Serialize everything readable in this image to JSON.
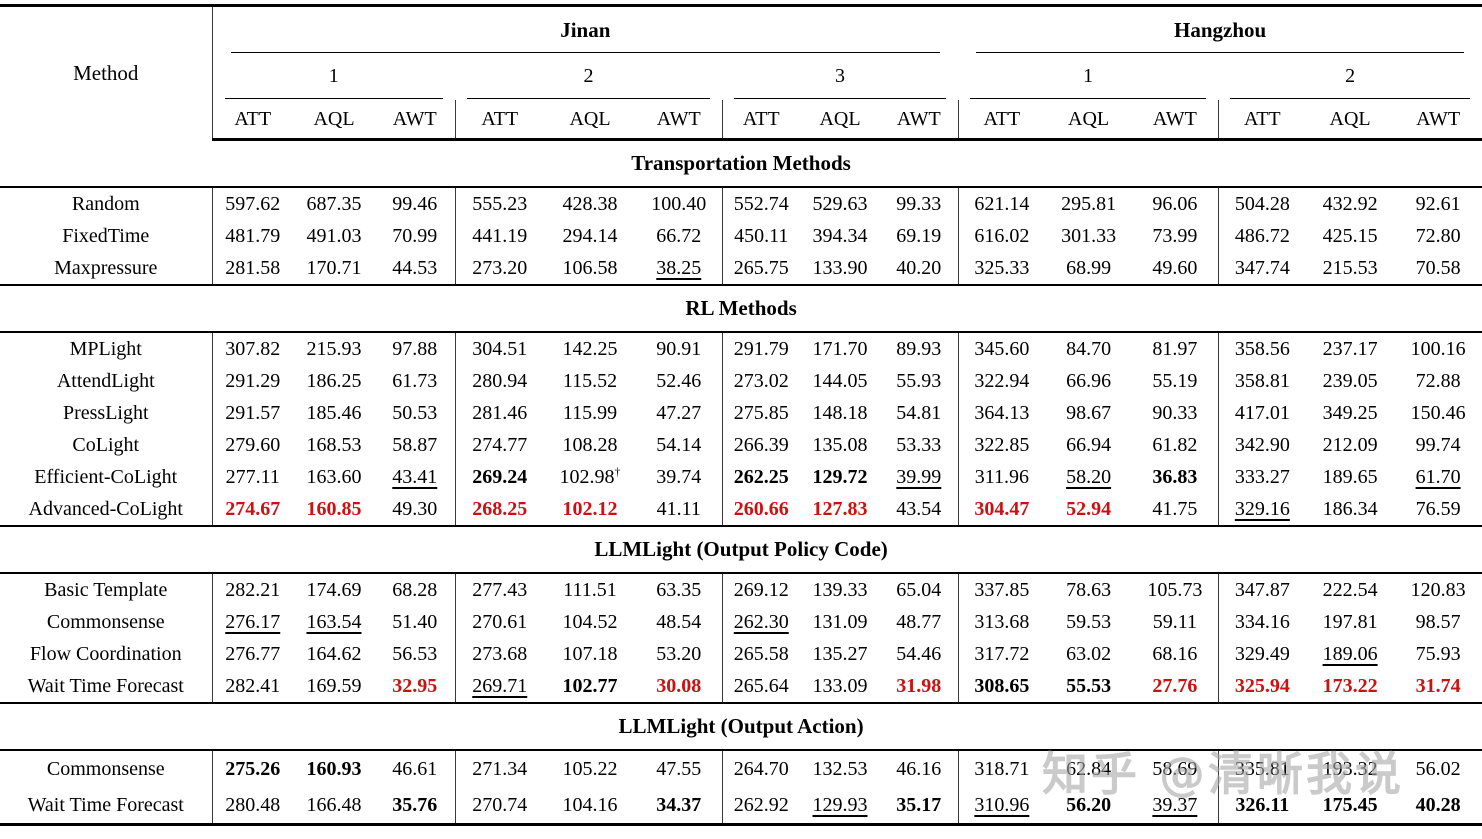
{
  "table": {
    "method_col_label": "Method",
    "metrics": [
      "ATT",
      "AQL",
      "AWT"
    ],
    "city_groups": [
      {
        "label": "Jinan",
        "scenarios": [
          "1",
          "2",
          "3"
        ]
      },
      {
        "label": "Hangzhou",
        "scenarios": [
          "1",
          "2"
        ]
      }
    ],
    "sections": [
      {
        "title": "Transportation Methods",
        "rows": [
          {
            "method": "Random",
            "cells": [
              [
                "597.62",
                ""
              ],
              [
                "687.35",
                ""
              ],
              [
                "99.46",
                ""
              ],
              [
                "555.23",
                ""
              ],
              [
                "428.38",
                ""
              ],
              [
                "100.40",
                ""
              ],
              [
                "552.74",
                ""
              ],
              [
                "529.63",
                ""
              ],
              [
                "99.33",
                ""
              ],
              [
                "621.14",
                ""
              ],
              [
                "295.81",
                ""
              ],
              [
                "96.06",
                ""
              ],
              [
                "504.28",
                ""
              ],
              [
                "432.92",
                ""
              ],
              [
                "92.61",
                ""
              ]
            ]
          },
          {
            "method": "FixedTime",
            "cells": [
              [
                "481.79",
                ""
              ],
              [
                "491.03",
                ""
              ],
              [
                "70.99",
                ""
              ],
              [
                "441.19",
                ""
              ],
              [
                "294.14",
                ""
              ],
              [
                "66.72",
                ""
              ],
              [
                "450.11",
                ""
              ],
              [
                "394.34",
                ""
              ],
              [
                "69.19",
                ""
              ],
              [
                "616.02",
                ""
              ],
              [
                "301.33",
                ""
              ],
              [
                "73.99",
                ""
              ],
              [
                "486.72",
                ""
              ],
              [
                "425.15",
                ""
              ],
              [
                "72.80",
                ""
              ]
            ]
          },
          {
            "method": "Maxpressure",
            "cells": [
              [
                "281.58",
                ""
              ],
              [
                "170.71",
                ""
              ],
              [
                "44.53",
                ""
              ],
              [
                "273.20",
                ""
              ],
              [
                "106.58",
                ""
              ],
              [
                "38.25",
                "u"
              ],
              [
                "265.75",
                ""
              ],
              [
                "133.90",
                ""
              ],
              [
                "40.20",
                ""
              ],
              [
                "325.33",
                ""
              ],
              [
                "68.99",
                ""
              ],
              [
                "49.60",
                ""
              ],
              [
                "347.74",
                ""
              ],
              [
                "215.53",
                ""
              ],
              [
                "70.58",
                ""
              ]
            ]
          }
        ]
      },
      {
        "title": "RL Methods",
        "rows": [
          {
            "method": "MPLight",
            "cells": [
              [
                "307.82",
                ""
              ],
              [
                "215.93",
                ""
              ],
              [
                "97.88",
                ""
              ],
              [
                "304.51",
                ""
              ],
              [
                "142.25",
                ""
              ],
              [
                "90.91",
                ""
              ],
              [
                "291.79",
                ""
              ],
              [
                "171.70",
                ""
              ],
              [
                "89.93",
                ""
              ],
              [
                "345.60",
                ""
              ],
              [
                "84.70",
                ""
              ],
              [
                "81.97",
                ""
              ],
              [
                "358.56",
                ""
              ],
              [
                "237.17",
                ""
              ],
              [
                "100.16",
                ""
              ]
            ]
          },
          {
            "method": "AttendLight",
            "cells": [
              [
                "291.29",
                ""
              ],
              [
                "186.25",
                ""
              ],
              [
                "61.73",
                ""
              ],
              [
                "280.94",
                ""
              ],
              [
                "115.52",
                ""
              ],
              [
                "52.46",
                ""
              ],
              [
                "273.02",
                ""
              ],
              [
                "144.05",
                ""
              ],
              [
                "55.93",
                ""
              ],
              [
                "322.94",
                ""
              ],
              [
                "66.96",
                ""
              ],
              [
                "55.19",
                ""
              ],
              [
                "358.81",
                ""
              ],
              [
                "239.05",
                ""
              ],
              [
                "72.88",
                ""
              ]
            ]
          },
          {
            "method": "PressLight",
            "cells": [
              [
                "291.57",
                ""
              ],
              [
                "185.46",
                ""
              ],
              [
                "50.53",
                ""
              ],
              [
                "281.46",
                ""
              ],
              [
                "115.99",
                ""
              ],
              [
                "47.27",
                ""
              ],
              [
                "275.85",
                ""
              ],
              [
                "148.18",
                ""
              ],
              [
                "54.81",
                ""
              ],
              [
                "364.13",
                ""
              ],
              [
                "98.67",
                ""
              ],
              [
                "90.33",
                ""
              ],
              [
                "417.01",
                ""
              ],
              [
                "349.25",
                ""
              ],
              [
                "150.46",
                ""
              ]
            ]
          },
          {
            "method": "CoLight",
            "cells": [
              [
                "279.60",
                ""
              ],
              [
                "168.53",
                ""
              ],
              [
                "58.87",
                ""
              ],
              [
                "274.77",
                ""
              ],
              [
                "108.28",
                ""
              ],
              [
                "54.14",
                ""
              ],
              [
                "266.39",
                ""
              ],
              [
                "135.08",
                ""
              ],
              [
                "53.33",
                ""
              ],
              [
                "322.85",
                ""
              ],
              [
                "66.94",
                ""
              ],
              [
                "61.82",
                ""
              ],
              [
                "342.90",
                ""
              ],
              [
                "212.09",
                ""
              ],
              [
                "99.74",
                ""
              ]
            ]
          },
          {
            "method": "Efficient-CoLight",
            "cells": [
              [
                "277.11",
                ""
              ],
              [
                "163.60",
                ""
              ],
              [
                "43.41",
                "u"
              ],
              [
                "269.24",
                "b"
              ],
              [
                "102.98",
                "d"
              ],
              [
                "39.74",
                ""
              ],
              [
                "262.25",
                "b"
              ],
              [
                "129.72",
                "b"
              ],
              [
                "39.99",
                "u"
              ],
              [
                "311.96",
                ""
              ],
              [
                "58.20",
                "u"
              ],
              [
                "36.83",
                "b"
              ],
              [
                "333.27",
                ""
              ],
              [
                "189.65",
                ""
              ],
              [
                "61.70",
                "u"
              ]
            ]
          },
          {
            "method": "Advanced-CoLight",
            "cells": [
              [
                "274.67",
                "r"
              ],
              [
                "160.85",
                "r"
              ],
              [
                "49.30",
                ""
              ],
              [
                "268.25",
                "r"
              ],
              [
                "102.12",
                "r"
              ],
              [
                "41.11",
                ""
              ],
              [
                "260.66",
                "r"
              ],
              [
                "127.83",
                "r"
              ],
              [
                "43.54",
                ""
              ],
              [
                "304.47",
                "r"
              ],
              [
                "52.94",
                "r"
              ],
              [
                "41.75",
                ""
              ],
              [
                "329.16",
                "u"
              ],
              [
                "186.34",
                ""
              ],
              [
                "76.59",
                ""
              ]
            ]
          }
        ]
      },
      {
        "title": "LLMLight (Output Policy Code)",
        "rows": [
          {
            "method": "Basic Template",
            "cells": [
              [
                "282.21",
                ""
              ],
              [
                "174.69",
                ""
              ],
              [
                "68.28",
                ""
              ],
              [
                "277.43",
                ""
              ],
              [
                "111.51",
                ""
              ],
              [
                "63.35",
                ""
              ],
              [
                "269.12",
                ""
              ],
              [
                "139.33",
                ""
              ],
              [
                "65.04",
                ""
              ],
              [
                "337.85",
                ""
              ],
              [
                "78.63",
                ""
              ],
              [
                "105.73",
                ""
              ],
              [
                "347.87",
                ""
              ],
              [
                "222.54",
                ""
              ],
              [
                "120.83",
                ""
              ]
            ]
          },
          {
            "method": "Commonsense",
            "cells": [
              [
                "276.17",
                "u"
              ],
              [
                "163.54",
                "u"
              ],
              [
                "51.40",
                ""
              ],
              [
                "270.61",
                ""
              ],
              [
                "104.52",
                ""
              ],
              [
                "48.54",
                ""
              ],
              [
                "262.30",
                "u"
              ],
              [
                "131.09",
                ""
              ],
              [
                "48.77",
                ""
              ],
              [
                "313.68",
                ""
              ],
              [
                "59.53",
                ""
              ],
              [
                "59.11",
                ""
              ],
              [
                "334.16",
                ""
              ],
              [
                "197.81",
                ""
              ],
              [
                "98.57",
                ""
              ]
            ]
          },
          {
            "method": "Flow Coordination",
            "cells": [
              [
                "276.77",
                ""
              ],
              [
                "164.62",
                ""
              ],
              [
                "56.53",
                ""
              ],
              [
                "273.68",
                ""
              ],
              [
                "107.18",
                ""
              ],
              [
                "53.20",
                ""
              ],
              [
                "265.58",
                ""
              ],
              [
                "135.27",
                ""
              ],
              [
                "54.46",
                ""
              ],
              [
                "317.72",
                ""
              ],
              [
                "63.02",
                ""
              ],
              [
                "68.16",
                ""
              ],
              [
                "329.49",
                ""
              ],
              [
                "189.06",
                "u"
              ],
              [
                "75.93",
                ""
              ]
            ]
          },
          {
            "method": "Wait Time Forecast",
            "cells": [
              [
                "282.41",
                ""
              ],
              [
                "169.59",
                ""
              ],
              [
                "32.95",
                "r"
              ],
              [
                "269.71",
                "u"
              ],
              [
                "102.77",
                "b"
              ],
              [
                "30.08",
                "r"
              ],
              [
                "265.64",
                ""
              ],
              [
                "133.09",
                ""
              ],
              [
                "31.98",
                "r"
              ],
              [
                "308.65",
                "b"
              ],
              [
                "55.53",
                "b"
              ],
              [
                "27.76",
                "r"
              ],
              [
                "325.94",
                "r"
              ],
              [
                "173.22",
                "r"
              ],
              [
                "31.74",
                "r"
              ]
            ]
          }
        ]
      },
      {
        "title": "LLMLight (Output Action)",
        "rows": [
          {
            "method": "Commonsense",
            "cells": [
              [
                "275.26",
                "b"
              ],
              [
                "160.93",
                "b"
              ],
              [
                "46.61",
                ""
              ],
              [
                "271.34",
                ""
              ],
              [
                "105.22",
                ""
              ],
              [
                "47.55",
                ""
              ],
              [
                "264.70",
                ""
              ],
              [
                "132.53",
                ""
              ],
              [
                "46.16",
                ""
              ],
              [
                "318.71",
                ""
              ],
              [
                "62.84",
                ""
              ],
              [
                "58.69",
                ""
              ],
              [
                "335.81",
                ""
              ],
              [
                "193.32",
                ""
              ],
              [
                "56.02",
                ""
              ]
            ]
          },
          {
            "method": "Wait Time Forecast",
            "cells": [
              [
                "280.48",
                ""
              ],
              [
                "166.48",
                ""
              ],
              [
                "35.76",
                "b"
              ],
              [
                "270.74",
                ""
              ],
              [
                "104.16",
                ""
              ],
              [
                "34.37",
                "b"
              ],
              [
                "262.92",
                ""
              ],
              [
                "129.93",
                "u"
              ],
              [
                "35.17",
                "b"
              ],
              [
                "310.96",
                "u"
              ],
              [
                "56.20",
                "b"
              ],
              [
                "39.37",
                "u"
              ],
              [
                "326.11",
                "b"
              ],
              [
                "175.45",
                "b"
              ],
              [
                "40.28",
                "b"
              ]
            ]
          }
        ]
      }
    ],
    "footnote_marker": "†"
  },
  "watermark": {
    "text": "知乎 @清晰我说"
  },
  "colors": {
    "highlight_red": "#cc1111",
    "rule_black": "#000000",
    "divider_gray": "#3a3a3a"
  }
}
